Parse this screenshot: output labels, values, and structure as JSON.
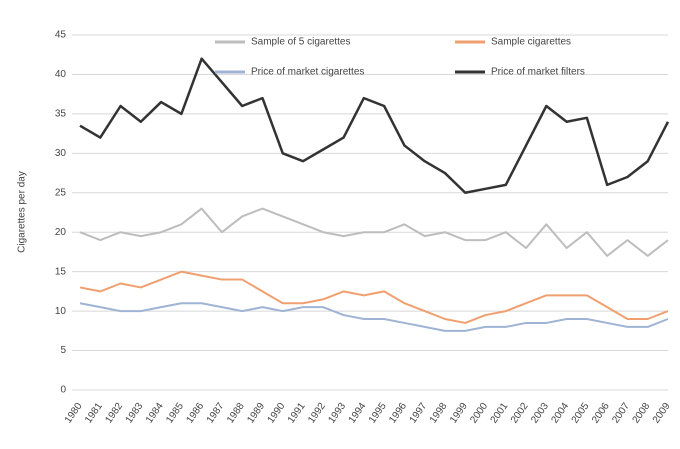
{
  "chart_data": {
    "type": "line",
    "y_label": "Cigarettes per day",
    "categories": [
      "1980",
      "1981",
      "1982",
      "1983",
      "1984",
      "1985",
      "1986",
      "1987",
      "1988",
      "1989",
      "1990",
      "1991",
      "1992",
      "1993",
      "1994",
      "1995",
      "1996",
      "1997",
      "1998",
      "1999",
      "2000",
      "2001",
      "2002",
      "2003",
      "2004",
      "2005",
      "2006",
      "2007",
      "2008",
      "2009"
    ],
    "series": [
      {
        "name": "Sample of 5 cigarettes",
        "color": "#bdbdbd",
        "values": [
          20,
          19,
          20,
          19.5,
          20,
          21,
          23,
          20,
          22,
          23,
          22,
          21,
          20,
          19.5,
          20,
          20,
          21,
          19.5,
          20,
          19,
          19,
          20,
          18,
          21,
          18,
          20,
          17,
          19,
          17,
          19
        ]
      },
      {
        "name": "Sample cigarettes",
        "color": "#f0a070",
        "values": [
          13,
          12.5,
          13.5,
          13,
          14,
          15,
          14.5,
          14,
          14,
          12.5,
          11,
          11,
          11.5,
          12.5,
          12,
          12.5,
          11,
          10,
          9,
          8.5,
          9.5,
          10,
          11,
          12,
          12,
          12,
          10.5,
          9,
          9,
          10
        ]
      },
      {
        "name": "Price of market cigarettes",
        "color": "#9fb4d4",
        "values": [
          11,
          10.5,
          10,
          10,
          10.5,
          11,
          11,
          10.5,
          10,
          10.5,
          10,
          10.5,
          10.5,
          9.5,
          9,
          9,
          8.5,
          8,
          7.5,
          7.5,
          8,
          8,
          8.5,
          8.5,
          9,
          9,
          8.5,
          8,
          8,
          9
        ]
      },
      {
        "name": "Price of market filters",
        "color": "#333333",
        "values": [
          33.5,
          32,
          36,
          34,
          36.5,
          35,
          42,
          39,
          36,
          37,
          30,
          29,
          30.5,
          32,
          37,
          36,
          31,
          29,
          27.5,
          25,
          25.5,
          26,
          31,
          36,
          34,
          34.5,
          26,
          27,
          29,
          34
        ]
      }
    ],
    "ylim": [
      0,
      45
    ],
    "yticks": [
      0,
      5,
      10,
      15,
      20,
      25,
      30,
      35,
      40,
      45
    ],
    "grid": true
  }
}
